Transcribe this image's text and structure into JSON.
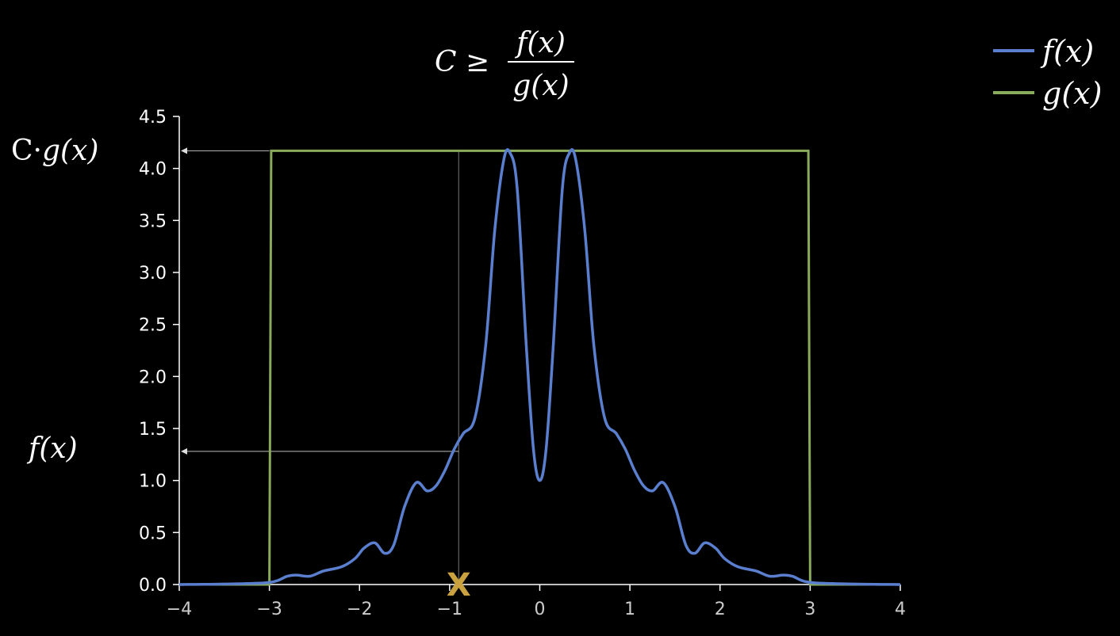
{
  "chart_data": {
    "type": "line",
    "title_math": {
      "lhs": "C ≥",
      "numerator": "f(x)",
      "denominator": "g(x)"
    },
    "xlim": [
      -4,
      4
    ],
    "ylim": [
      0,
      4.5
    ],
    "x_ticks": [
      -4,
      -3,
      -2,
      -1,
      0,
      1,
      2,
      3,
      4
    ],
    "x_tick_labels": [
      "−4",
      "−3",
      "−2",
      "−1",
      "0",
      "1",
      "2",
      "3",
      "4"
    ],
    "y_ticks": [
      0,
      0.5,
      1,
      1.5,
      2,
      2.5,
      3,
      3.5,
      4,
      4.5
    ],
    "y_tick_labels": [
      "0.0",
      "0.5",
      "1.0",
      "1.5",
      "2.0",
      "2.5",
      "3.0",
      "3.5",
      "4.0",
      "4.5"
    ],
    "grid": false,
    "legend_position": "top-right",
    "series": [
      {
        "name": "f(x)",
        "color": "#5b7fcf",
        "x": [
          -4,
          -3.5,
          -3.0,
          -2.8,
          -2.7,
          -2.55,
          -2.4,
          -2.2,
          -2.05,
          -1.95,
          -1.83,
          -1.72,
          -1.62,
          -1.5,
          -1.37,
          -1.25,
          -1.15,
          -1.05,
          -0.95,
          -0.85,
          -0.72,
          -0.6,
          -0.5,
          -0.4,
          -0.33,
          -0.25,
          -0.15,
          -0.07,
          0,
          0.07,
          0.15,
          0.25,
          0.33,
          0.4,
          0.5,
          0.6,
          0.72,
          0.85,
          0.95,
          1.05,
          1.15,
          1.25,
          1.37,
          1.5,
          1.62,
          1.72,
          1.83,
          1.95,
          2.05,
          2.2,
          2.4,
          2.55,
          2.7,
          2.8,
          3.0,
          3.5,
          4
        ],
        "y": [
          0.0,
          0.005,
          0.02,
          0.08,
          0.09,
          0.08,
          0.13,
          0.17,
          0.25,
          0.35,
          0.4,
          0.3,
          0.38,
          0.75,
          0.98,
          0.9,
          0.95,
          1.1,
          1.3,
          1.45,
          1.6,
          2.3,
          3.4,
          4.08,
          4.15,
          3.8,
          2.3,
          1.3,
          1.0,
          1.3,
          2.3,
          3.8,
          4.15,
          4.08,
          3.4,
          2.3,
          1.6,
          1.45,
          1.3,
          1.1,
          0.95,
          0.9,
          0.98,
          0.75,
          0.38,
          0.3,
          0.4,
          0.35,
          0.25,
          0.17,
          0.13,
          0.08,
          0.09,
          0.08,
          0.02,
          0.005,
          0.0
        ]
      },
      {
        "name": "g(x)",
        "color": "#8aab5c",
        "x": [
          -4,
          -3.0,
          -2.98,
          2.98,
          3.0,
          4
        ],
        "y": [
          0,
          0,
          4.17,
          4.17,
          0,
          0
        ]
      }
    ],
    "annotations": {
      "cg_label": {
        "prefix": "C·",
        "func": "g(x)"
      },
      "cg_level": 4.17,
      "fx_label": "f(x)",
      "fx_level": 1.28,
      "sample_x": -0.9,
      "sample_marker": "X",
      "marker_color": "#c9a23f"
    }
  }
}
